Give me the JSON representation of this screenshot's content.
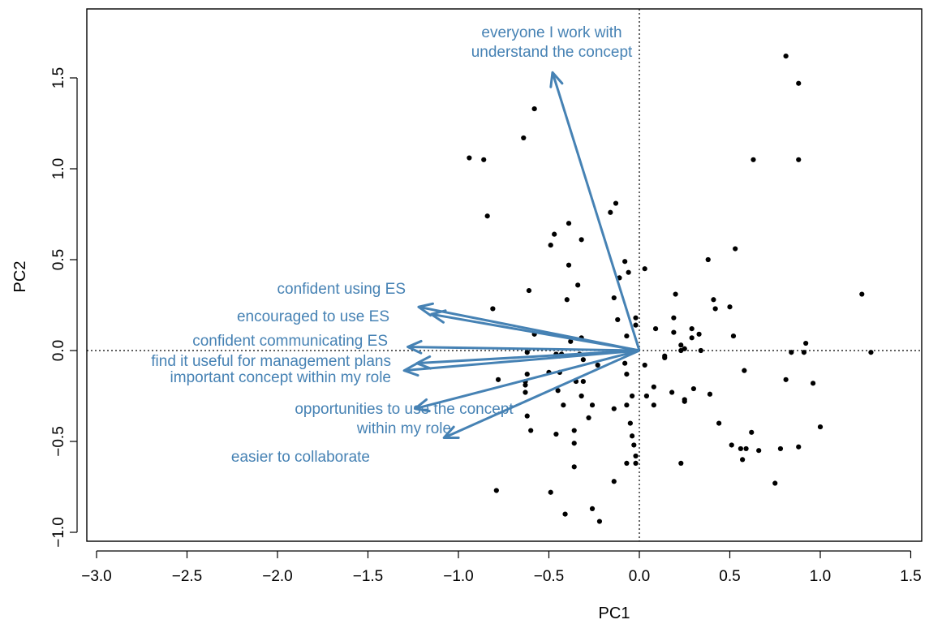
{
  "chart_data": {
    "type": "scatter",
    "xlabel": "PC1",
    "ylabel": "PC2",
    "xlim": [
      -3.0,
      1.5
    ],
    "ylim": [
      -1.0,
      1.8
    ],
    "x_ticks": [
      -3.0,
      -2.5,
      -2.0,
      -1.5,
      -1.0,
      -0.5,
      0.0,
      0.5,
      1.0,
      1.5
    ],
    "y_ticks": [
      -1.0,
      -0.5,
      0.0,
      0.5,
      1.0,
      1.5
    ],
    "x_tick_labels": [
      "−3.0",
      "−2.5",
      "−2.0",
      "−1.5",
      "−1.0",
      "−0.5",
      "0.0",
      "0.5",
      "1.0",
      "1.5"
    ],
    "y_tick_labels": [
      "−1.0",
      "−0.5",
      "0.0",
      "0.5",
      "1.0",
      "1.5"
    ],
    "reference_lines": {
      "x": 0,
      "y": 0,
      "style": "dotted"
    },
    "arrow_color": "#4682B4",
    "point_color": "#000000",
    "arrows": [
      {
        "label": "everyone I work with\nunderstand the concept",
        "x": -0.48,
        "y": 1.53
      },
      {
        "label": "confident using ES",
        "x": -1.22,
        "y": 0.24
      },
      {
        "label": "encouraged to use ES",
        "x": -1.15,
        "y": 0.2
      },
      {
        "label": "confident communicating ES",
        "x": -1.28,
        "y": 0.02
      },
      {
        "label": "find it useful for management plans",
        "x": -1.23,
        "y": -0.07
      },
      {
        "label": "important concept within my role",
        "x": -1.3,
        "y": -0.11
      },
      {
        "label": "opportunities to use the concept\nwithin my role",
        "x": -1.24,
        "y": -0.32
      },
      {
        "label": "easier to collaborate",
        "x": -1.08,
        "y": -0.48
      }
    ],
    "points": [
      [
        0.81,
        1.62
      ],
      [
        0.88,
        1.47
      ],
      [
        -0.58,
        1.33
      ],
      [
        0.63,
        1.05
      ],
      [
        0.88,
        1.05
      ],
      [
        -0.94,
        1.06
      ],
      [
        -0.86,
        1.05
      ],
      [
        -0.64,
        1.17
      ],
      [
        -0.13,
        0.81
      ],
      [
        -0.16,
        0.76
      ],
      [
        -0.84,
        0.74
      ],
      [
        -0.39,
        0.7
      ],
      [
        -0.47,
        0.64
      ],
      [
        -0.49,
        0.58
      ],
      [
        -0.32,
        0.61
      ],
      [
        0.53,
        0.56
      ],
      [
        -0.08,
        0.49
      ],
      [
        0.38,
        0.5
      ],
      [
        -0.39,
        0.47
      ],
      [
        -0.06,
        0.43
      ],
      [
        0.03,
        0.45
      ],
      [
        -0.11,
        0.4
      ],
      [
        -0.34,
        0.36
      ],
      [
        -0.61,
        0.33
      ],
      [
        0.2,
        0.31
      ],
      [
        1.23,
        0.31
      ],
      [
        -0.4,
        0.28
      ],
      [
        -0.14,
        0.29
      ],
      [
        0.41,
        0.28
      ],
      [
        0.42,
        0.23
      ],
      [
        0.5,
        0.24
      ],
      [
        -0.81,
        0.23
      ],
      [
        0.19,
        0.18
      ],
      [
        -0.02,
        0.18
      ],
      [
        -0.12,
        0.17
      ],
      [
        -0.02,
        0.14
      ],
      [
        0.29,
        0.12
      ],
      [
        0.09,
        0.12
      ],
      [
        0.19,
        0.1
      ],
      [
        0.33,
        0.09
      ],
      [
        0.52,
        0.08
      ],
      [
        -0.58,
        0.09
      ],
      [
        -0.07,
        0.08
      ],
      [
        -0.32,
        0.07
      ],
      [
        0.29,
        0.07
      ],
      [
        0.23,
        0.03
      ],
      [
        -0.38,
        0.05
      ],
      [
        0.92,
        0.04
      ],
      [
        0.25,
        0.01
      ],
      [
        0.23,
        0.0
      ],
      [
        0.34,
        0.0
      ],
      [
        0.84,
        -0.01
      ],
      [
        0.91,
        -0.01
      ],
      [
        1.28,
        -0.01
      ],
      [
        -0.62,
        -0.01
      ],
      [
        -0.46,
        -0.02
      ],
      [
        -0.44,
        -0.03
      ],
      [
        -0.43,
        -0.02
      ],
      [
        -0.33,
        -0.02
      ],
      [
        0.14,
        -0.03
      ],
      [
        0.14,
        -0.04
      ],
      [
        -0.31,
        -0.05
      ],
      [
        -0.08,
        -0.07
      ],
      [
        -0.23,
        -0.08
      ],
      [
        0.03,
        -0.08
      ],
      [
        -0.62,
        -0.13
      ],
      [
        -0.44,
        -0.12
      ],
      [
        -0.78,
        -0.16
      ],
      [
        -0.5,
        -0.12
      ],
      [
        -0.07,
        -0.13
      ],
      [
        0.58,
        -0.11
      ],
      [
        -0.35,
        -0.17
      ],
      [
        -0.31,
        -0.17
      ],
      [
        -0.63,
        -0.17
      ],
      [
        -0.63,
        -0.23
      ],
      [
        -0.63,
        -0.19
      ],
      [
        0.3,
        -0.21
      ],
      [
        0.08,
        -0.2
      ],
      [
        0.18,
        -0.23
      ],
      [
        0.25,
        -0.27
      ],
      [
        0.39,
        -0.24
      ],
      [
        -0.32,
        -0.25
      ],
      [
        -0.45,
        -0.22
      ],
      [
        -0.04,
        -0.25
      ],
      [
        0.04,
        -0.25
      ],
      [
        0.81,
        -0.16
      ],
      [
        0.96,
        -0.18
      ],
      [
        -0.42,
        -0.3
      ],
      [
        -0.26,
        -0.3
      ],
      [
        -0.07,
        -0.3
      ],
      [
        0.08,
        -0.3
      ],
      [
        0.25,
        -0.28
      ],
      [
        -0.14,
        -0.32
      ],
      [
        -0.62,
        -0.36
      ],
      [
        -0.28,
        -0.37
      ],
      [
        -0.05,
        -0.4
      ],
      [
        0.44,
        -0.4
      ],
      [
        -0.04,
        -0.47
      ],
      [
        -0.36,
        -0.44
      ],
      [
        -0.6,
        -0.44
      ],
      [
        -0.46,
        -0.46
      ],
      [
        1.0,
        -0.42
      ],
      [
        0.51,
        -0.52
      ],
      [
        0.62,
        -0.45
      ],
      [
        0.56,
        -0.54
      ],
      [
        0.59,
        -0.54
      ],
      [
        0.78,
        -0.54
      ],
      [
        0.66,
        -0.55
      ],
      [
        0.88,
        -0.53
      ],
      [
        -0.36,
        -0.51
      ],
      [
        -0.03,
        -0.52
      ],
      [
        -0.02,
        -0.58
      ],
      [
        0.57,
        -0.6
      ],
      [
        -0.02,
        -0.62
      ],
      [
        0.23,
        -0.62
      ],
      [
        -0.07,
        -0.62
      ],
      [
        -0.36,
        -0.64
      ],
      [
        -0.14,
        -0.72
      ],
      [
        0.75,
        -0.73
      ],
      [
        -0.79,
        -0.77
      ],
      [
        -0.49,
        -0.78
      ],
      [
        -0.26,
        -0.87
      ],
      [
        -0.41,
        -0.9
      ],
      [
        -0.22,
        -0.94
      ]
    ]
  }
}
